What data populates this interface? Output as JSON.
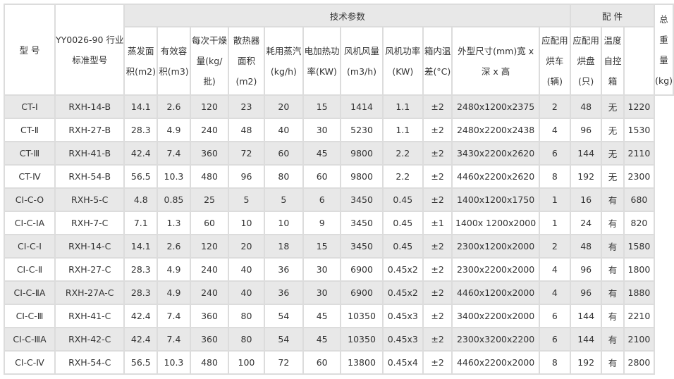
{
  "header": {
    "model": "型 号",
    "standard_model": "YY0026-90 行业标准型号",
    "tech_params": "技术参数",
    "accessories": "配 件",
    "total_weight": "总重量(kg)",
    "columns": [
      "蒸发面积(m2)",
      "有效容积(m3)",
      "每次干燥量(kg/批)",
      "散热器面积(m2)",
      "耗用蒸汽(kg/h)",
      "电加热功率(KW)",
      "风机风量(m3/h)",
      "风机功率(KW)",
      "箱内温差(°C)",
      "外型尺寸(mm)宽 x 深 x 高",
      "应配用烘车(辆)",
      "应配用烘盘(只)",
      "温度自控箱"
    ]
  },
  "rows": [
    [
      "CT-Ⅰ",
      "RXH-14-B",
      "14.1",
      "2.6",
      "120",
      "23",
      "20",
      "15",
      "1414",
      "1.1",
      "±2",
      "2480x1200x2375",
      "2",
      "48",
      "无",
      "1220"
    ],
    [
      "CT-Ⅱ",
      "RXH-27-B",
      "28.3",
      "4.9",
      "240",
      "48",
      "40",
      "30",
      "5230",
      "1.1",
      "±2",
      "2480x2200x2438",
      "4",
      "96",
      "无",
      "1530"
    ],
    [
      "CT-Ⅲ",
      "RXH-41-B",
      "42.4",
      "7.4",
      "360",
      "72",
      "60",
      "45",
      "9800",
      "2.2",
      "±2",
      "3430x2200x2620",
      "6",
      "144",
      "无",
      "2110"
    ],
    [
      "CT-Ⅳ",
      "RXH-54-B",
      "56.5",
      "10.3",
      "480",
      "96",
      "80",
      "60",
      "9800",
      "2.2",
      "±2",
      "4460x2200x2620",
      "8",
      "192",
      "无",
      "2300"
    ],
    [
      "CI-C-O",
      "RXH-5-C",
      "4.8",
      "0.85",
      "25",
      "5",
      "5",
      "6",
      "3450",
      "0.45",
      "±2",
      "1400x1200x1750",
      "1",
      "16",
      "有",
      "680"
    ],
    [
      "CI-C-IA",
      "RXH-7-C",
      "7.1",
      "1.3",
      "60",
      "10",
      "10",
      "9",
      "3450",
      "0.45",
      "±1",
      "1400x 1200x2000",
      "1",
      "24",
      "有",
      "820"
    ],
    [
      "CI-C-Ⅰ",
      "RXH-14-C",
      "14.1",
      "2.6",
      "120",
      "20",
      "18",
      "15",
      "3450",
      "0.45",
      "±2",
      "2300x1200x2000",
      "2",
      "48",
      "有",
      "1580"
    ],
    [
      "CI-C-Ⅱ",
      "RXH-27-C",
      "28.3",
      "4.9",
      "240",
      "40",
      "36",
      "30",
      "6900",
      "0.45x2",
      "±2",
      "2300x2200x2000",
      "4",
      "96",
      "有",
      "1800"
    ],
    [
      "CI-C-ⅡA",
      "RXH-27A-C",
      "28.3",
      "4.9",
      "240",
      "40",
      "36",
      "30",
      "6900",
      "0.45x2",
      "±2",
      "4460x1200x2000",
      "4",
      "96",
      "有",
      "1880"
    ],
    [
      "CI-C-Ⅲ",
      "RXH-41-C",
      "42.4",
      "7.4",
      "360",
      "80",
      "54",
      "45",
      "10350",
      "0.45x3",
      "±2",
      "3400x2200x2000",
      "6",
      "144",
      "有",
      "2210"
    ],
    [
      "CI-C-ⅢA",
      "RXH-42-C",
      "42.4",
      "7.4",
      "360",
      "80",
      "54",
      "45",
      "10350",
      "0.45x3",
      "±2",
      "2300x3200x2200",
      "6",
      "144",
      "有",
      "2100"
    ],
    [
      "CI-C-Ⅳ",
      "RXH-54-C",
      "56.5",
      "10.3",
      "480",
      "100",
      "72",
      "60",
      "13800",
      "0.45x4",
      "±2",
      "4460x2200x2000",
      "8",
      "192",
      "有",
      "2800"
    ]
  ]
}
